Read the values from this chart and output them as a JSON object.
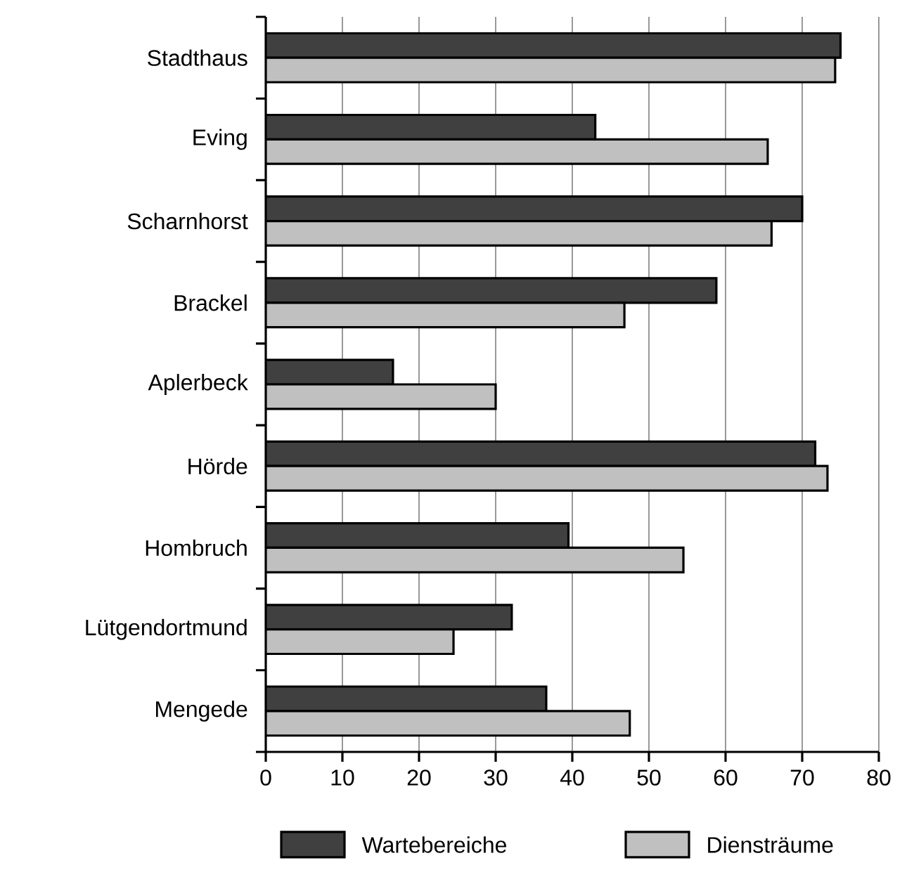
{
  "chart_data": {
    "type": "bar",
    "orientation": "horizontal",
    "categories": [
      "Stadthaus",
      "Eving",
      "Scharnhorst",
      "Brackel",
      "Aplerbeck",
      "Hörde",
      "Hombruch",
      "Lütgendortmund",
      "Mengede"
    ],
    "series": [
      {
        "name": "Wartebereiche",
        "color": "#404040",
        "values": [
          75,
          43,
          70,
          58.8,
          16.6,
          71.7,
          39.5,
          32.1,
          36.6
        ]
      },
      {
        "name": "Diensträume",
        "color": "#c0c0c0",
        "values": [
          74.3,
          65.5,
          66,
          46.8,
          30,
          73.3,
          54.5,
          24.5,
          47.5
        ]
      }
    ],
    "xlim": [
      0,
      80
    ],
    "xticks": [
      0,
      10,
      20,
      30,
      40,
      50,
      60,
      70,
      80
    ],
    "grid": "x",
    "legend": "bottom"
  }
}
